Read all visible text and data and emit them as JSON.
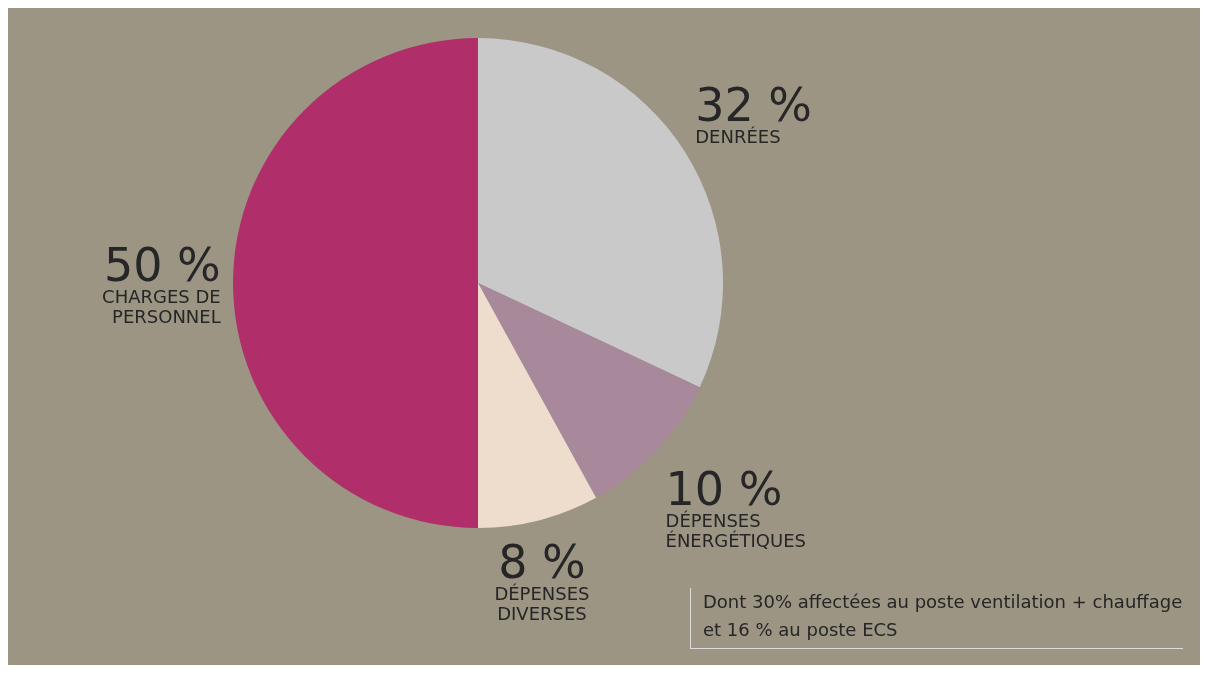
{
  "chart_data": {
    "type": "pie",
    "categories": [
      "DENRÉES",
      "DÉPENSES ÉNERGÉTIQUES",
      "DÉPENSES DIVERSES",
      "CHARGES DE PERSONNEL"
    ],
    "values": [
      32,
      10,
      8,
      50
    ],
    "colors": [
      "#c9c9c9",
      "#a8899b",
      "#eeddcc",
      "#b02f6a"
    ],
    "value_labels": [
      "32 %",
      "10 %",
      "8 %",
      "50 %"
    ],
    "annotations": [
      "Dont 30% affectées au poste ventilation + chauffage et 16 % au poste ECS"
    ],
    "legend": false
  }
}
